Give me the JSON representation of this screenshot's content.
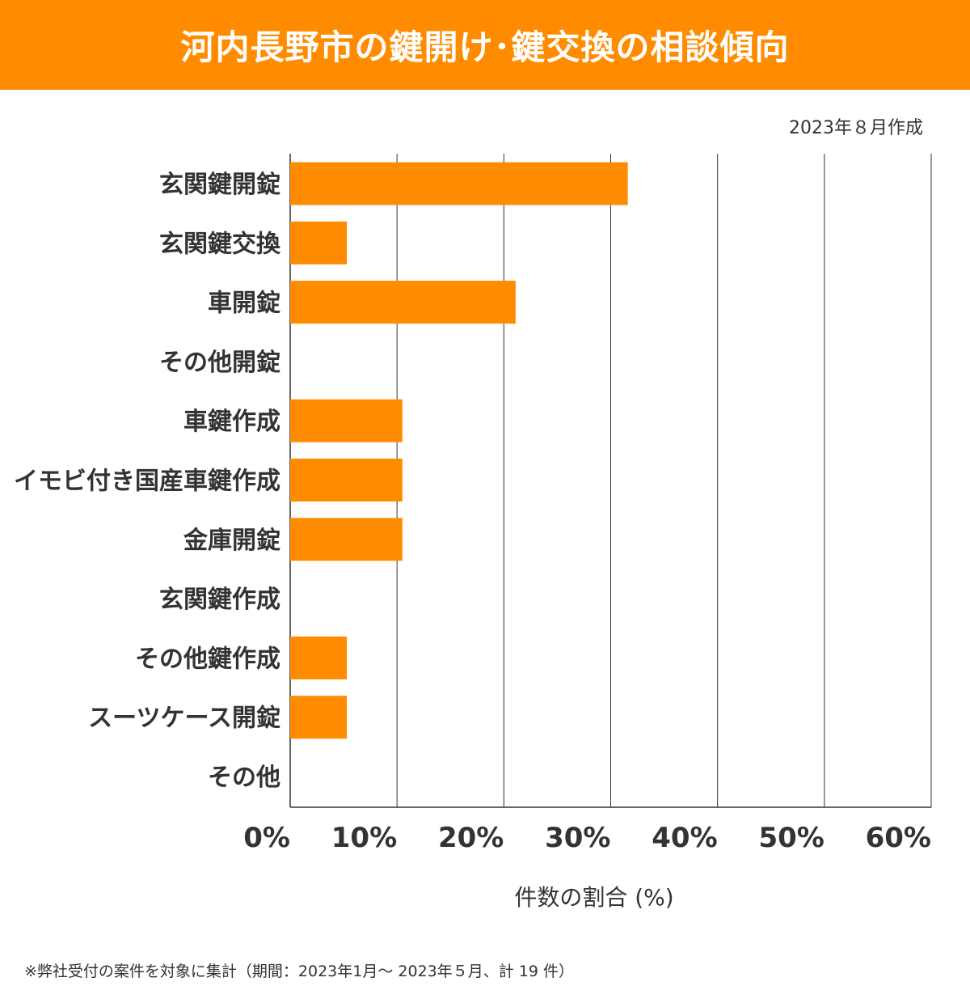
{
  "header": {
    "title": "河内長野市の鍵開け･鍵交換の相談傾向",
    "created": "2023年８月作成"
  },
  "footnote": "※弊社受付の案件を対象に集計（期間：2023年1月～ 2023年５月、計 19 件）",
  "colors": {
    "bar": "#ff8c00",
    "banner": "#ff8c00",
    "grid": "#333333"
  },
  "chart_data": {
    "type": "bar",
    "orientation": "horizontal",
    "title": "河内長野市の鍵開け･鍵交換の相談傾向",
    "xlabel": "件数の割合 (%)",
    "ylabel": "",
    "xlim": [
      0,
      60
    ],
    "xticks": [
      0,
      10,
      20,
      30,
      40,
      50,
      60
    ],
    "xtick_labels": [
      "0%",
      "10%",
      "20%",
      "30%",
      "40%",
      "50%",
      "60%"
    ],
    "grid": true,
    "categories": [
      "玄関鍵開錠",
      "玄関鍵交換",
      "車開錠",
      "その他開錠",
      "車鍵作成",
      "イモビ付き国産車鍵作成",
      "金庫開錠",
      "玄関鍵作成",
      "その他鍵作成",
      "スーツケース開錠",
      "その他"
    ],
    "values": [
      31.6,
      5.3,
      21.1,
      0,
      10.5,
      10.5,
      10.5,
      0,
      5.3,
      5.3,
      0
    ]
  }
}
